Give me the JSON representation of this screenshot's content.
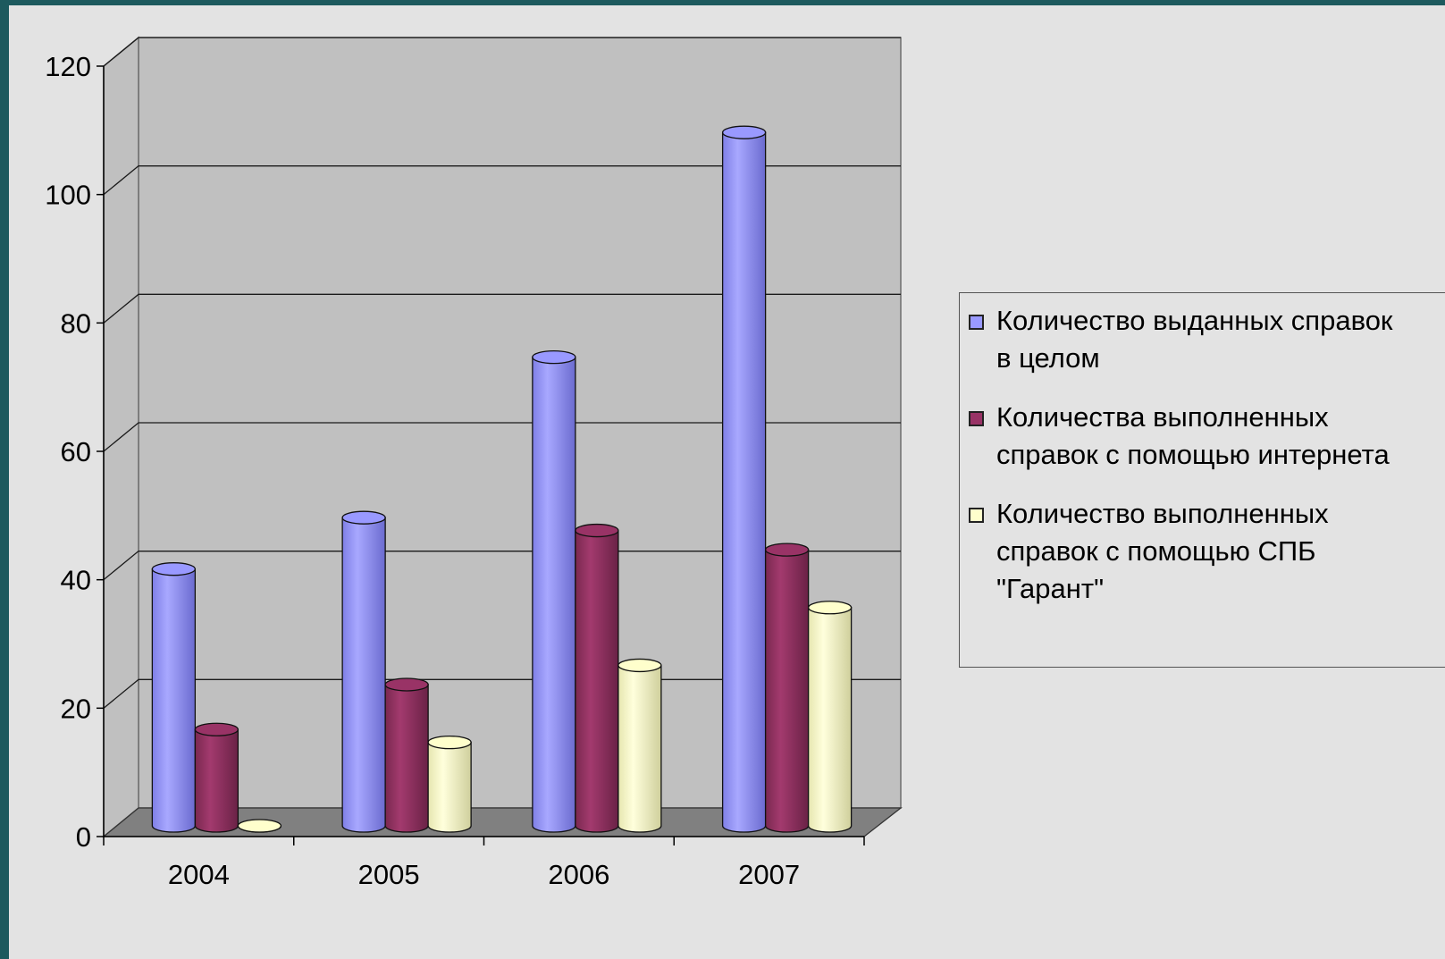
{
  "chart_data": {
    "type": "bar",
    "title": "",
    "xlabel": "",
    "ylabel": "",
    "categories": [
      "2004",
      "2005",
      "2006",
      "2007"
    ],
    "ylim": [
      0,
      120
    ],
    "yticks": [
      "0",
      "20",
      "40",
      "60",
      "80",
      "100",
      "120"
    ],
    "series": [
      {
        "name": "Количество выданных справок\nв целом",
        "values": [
          40,
          48,
          73,
          108
        ],
        "color": "#9999ff"
      },
      {
        "name": "Количества выполненных\nсправок с помощью интернета",
        "values": [
          15,
          22,
          46,
          43
        ],
        "color": "#993366"
      },
      {
        "name": "Количество выполненных\nсправок с помощью СПБ\n\"Гарант\"",
        "values": [
          0,
          13,
          25,
          34
        ],
        "color": "#ffffcc"
      }
    ],
    "grid": true,
    "legend_position": "right",
    "background_color": "#e3e3e3",
    "plot_wall_color": "#c0c0c0",
    "floor_color": "#808080"
  }
}
